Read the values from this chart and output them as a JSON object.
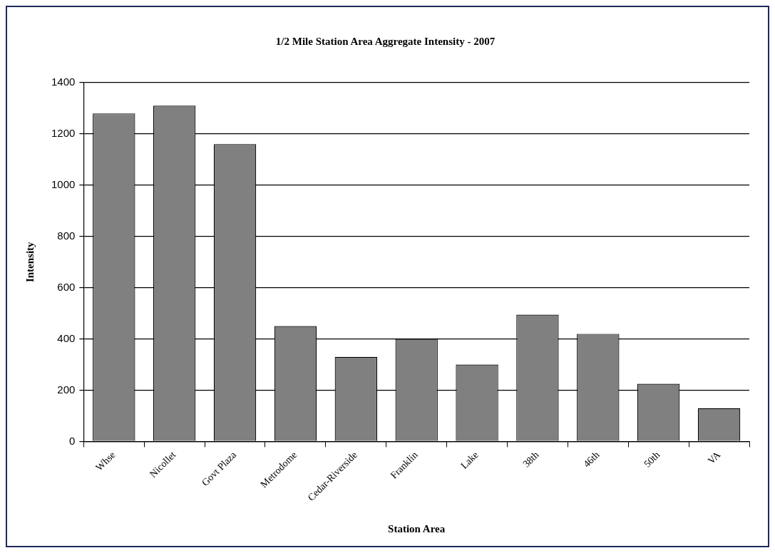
{
  "chart_data": {
    "type": "bar",
    "title": "1/2 Mile Station Area Aggregate Intensity - 2007",
    "xlabel": "Station Area",
    "ylabel": "Intensity",
    "categories": [
      "Whse",
      "Nicollet",
      "Govt Plaza",
      "Metrodome",
      "Cedar-Riverside",
      "Franklin",
      "Lake",
      "38th",
      "46th",
      "50th",
      "VA"
    ],
    "values": [
      1280,
      1310,
      1160,
      450,
      330,
      400,
      300,
      495,
      420,
      225,
      130
    ],
    "color": "#808080",
    "ylim": [
      0,
      1400
    ],
    "yticks": [
      0,
      200,
      400,
      600,
      800,
      1000,
      1200,
      1400
    ],
    "grid": "y",
    "legend": false
  }
}
